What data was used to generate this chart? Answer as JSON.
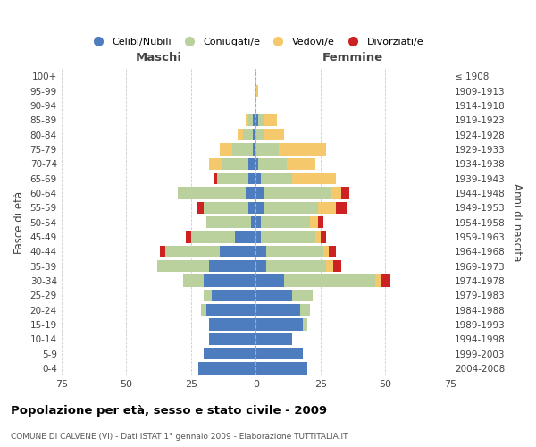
{
  "age_groups": [
    "0-4",
    "5-9",
    "10-14",
    "15-19",
    "20-24",
    "25-29",
    "30-34",
    "35-39",
    "40-44",
    "45-49",
    "50-54",
    "55-59",
    "60-64",
    "65-69",
    "70-74",
    "75-79",
    "80-84",
    "85-89",
    "90-94",
    "95-99",
    "100+"
  ],
  "birth_years": [
    "2004-2008",
    "1999-2003",
    "1994-1998",
    "1989-1993",
    "1984-1988",
    "1979-1983",
    "1974-1978",
    "1969-1973",
    "1964-1968",
    "1959-1963",
    "1954-1958",
    "1949-1953",
    "1944-1948",
    "1939-1943",
    "1934-1938",
    "1929-1933",
    "1924-1928",
    "1919-1923",
    "1914-1918",
    "1909-1913",
    "≤ 1908"
  ],
  "maschi_celibi": [
    22,
    20,
    18,
    18,
    19,
    17,
    20,
    18,
    14,
    8,
    2,
    3,
    4,
    3,
    3,
    1,
    1,
    1,
    0,
    0,
    0
  ],
  "maschi_coniugati": [
    0,
    0,
    0,
    0,
    2,
    3,
    8,
    20,
    21,
    17,
    17,
    17,
    26,
    12,
    10,
    8,
    4,
    2,
    0,
    0,
    0
  ],
  "maschi_vedovi": [
    0,
    0,
    0,
    0,
    0,
    0,
    0,
    0,
    0,
    0,
    0,
    0,
    0,
    0,
    5,
    5,
    2,
    1,
    0,
    0,
    0
  ],
  "maschi_divorziati": [
    0,
    0,
    0,
    0,
    0,
    0,
    0,
    0,
    2,
    2,
    0,
    3,
    0,
    1,
    0,
    0,
    0,
    0,
    0,
    0,
    0
  ],
  "femmine_nubili": [
    20,
    18,
    14,
    18,
    17,
    14,
    11,
    4,
    4,
    2,
    2,
    3,
    3,
    2,
    1,
    0,
    0,
    1,
    0,
    0,
    0
  ],
  "femmine_coniugate": [
    0,
    0,
    0,
    2,
    4,
    8,
    35,
    23,
    22,
    21,
    19,
    21,
    26,
    12,
    11,
    9,
    3,
    2,
    0,
    0,
    0
  ],
  "femmine_vedove": [
    0,
    0,
    0,
    0,
    0,
    0,
    2,
    3,
    2,
    2,
    3,
    7,
    4,
    17,
    11,
    18,
    8,
    5,
    0,
    1,
    0
  ],
  "femmine_divorziate": [
    0,
    0,
    0,
    0,
    0,
    0,
    4,
    3,
    3,
    2,
    2,
    4,
    3,
    0,
    0,
    0,
    0,
    0,
    0,
    0,
    0
  ],
  "colors": {
    "celibi": "#4d7dbf",
    "coniugati": "#bad19e",
    "vedovi": "#f5c96b",
    "divorziati": "#cc2222"
  },
  "xlim": 75,
  "title": "Popolazione per età, sesso e stato civile - 2009",
  "subtitle": "COMUNE DI CALVENE (VI) - Dati ISTAT 1° gennaio 2009 - Elaborazione TUTTITALIA.IT",
  "header_left": "Maschi",
  "header_right": "Femmine",
  "ylabel_left": "Fasce di età",
  "ylabel_right": "Anni di nascita",
  "legend_labels": [
    "Celibi/Nubili",
    "Coniugati/e",
    "Vedovi/e",
    "Divorziati/e"
  ]
}
